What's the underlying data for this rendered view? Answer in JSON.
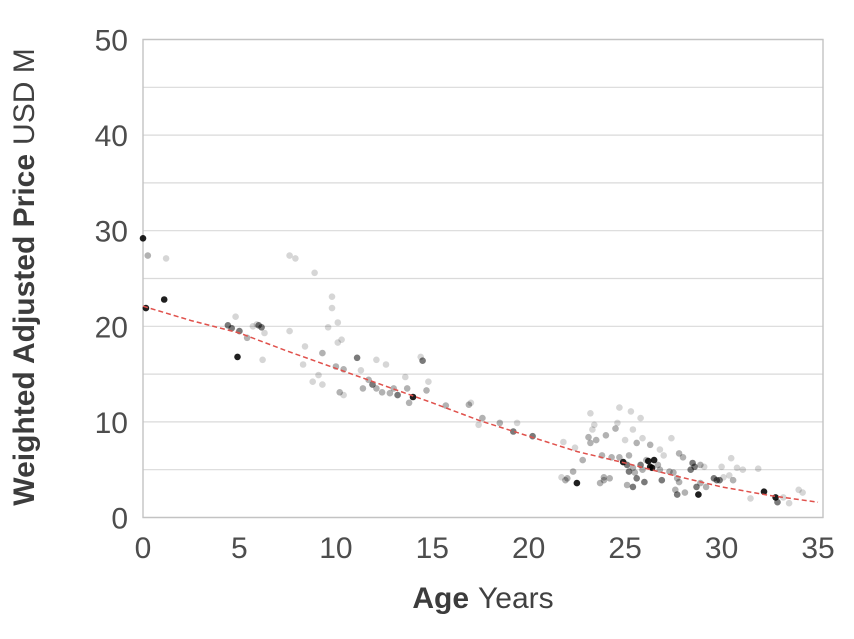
{
  "chart_data": {
    "type": "scatter",
    "title": "",
    "xlabel_bold": "Age",
    "xlabel_regular": "Years",
    "ylabel_bold": "Weighted Adjusted Price",
    "ylabel_regular": "USD M",
    "xlim": [
      0,
      35
    ],
    "ylim": [
      0,
      50
    ],
    "x_ticks": [
      0,
      5,
      10,
      15,
      20,
      25,
      30,
      35
    ],
    "y_ticks": [
      0,
      10,
      20,
      30,
      40,
      50
    ],
    "gridline_step_y": 5,
    "grid": "horizontal-only",
    "legend_position": "none",
    "colors": {
      "point": "#000000",
      "trend_line": "#e0514c",
      "grid": "#dadada",
      "border": "#c3c3c3",
      "tick_text": "#4d4d4d",
      "axis_title_text": "#414141",
      "background": "#ffffff"
    },
    "shade_opacity": {
      "l": 0.16,
      "m": 0.3,
      "d": 0.52,
      "k": 0.88
    },
    "point_radius": 3.3,
    "trend_style": "dashed",
    "trend_points": [
      [
        0,
        22.1
      ],
      [
        2.5,
        20.6
      ],
      [
        5,
        19.3
      ],
      [
        7.5,
        17.4
      ],
      [
        10,
        15.6
      ],
      [
        12.5,
        13.8
      ],
      [
        15,
        12.0
      ],
      [
        17.5,
        10.1
      ],
      [
        20,
        8.5
      ],
      [
        22.5,
        6.9
      ],
      [
        25,
        5.7
      ],
      [
        27.5,
        4.4
      ],
      [
        30,
        3.2
      ],
      [
        32.5,
        2.3
      ],
      [
        35,
        1.6
      ]
    ],
    "points": [
      [
        0.0,
        29.2,
        "k"
      ],
      [
        0.25,
        27.4,
        "m"
      ],
      [
        1.2,
        27.1,
        "l"
      ],
      [
        1.1,
        22.8,
        "k"
      ],
      [
        0.15,
        21.9,
        "k"
      ],
      [
        4.8,
        21.0,
        "l"
      ],
      [
        4.4,
        20.1,
        "d"
      ],
      [
        4.6,
        19.8,
        "d"
      ],
      [
        5.0,
        19.5,
        "d"
      ],
      [
        5.4,
        18.8,
        "m"
      ],
      [
        5.7,
        20.0,
        "l"
      ],
      [
        5.9,
        20.2,
        "l"
      ],
      [
        6.0,
        20.1,
        "d"
      ],
      [
        6.15,
        19.9,
        "d"
      ],
      [
        6.3,
        19.3,
        "l"
      ],
      [
        4.9,
        16.8,
        "k"
      ],
      [
        6.2,
        16.5,
        "l"
      ],
      [
        7.6,
        27.4,
        "l"
      ],
      [
        7.9,
        27.1,
        "l"
      ],
      [
        8.9,
        25.6,
        "l"
      ],
      [
        9.8,
        23.1,
        "l"
      ],
      [
        9.8,
        21.9,
        "l"
      ],
      [
        7.6,
        19.5,
        "l"
      ],
      [
        9.6,
        19.9,
        "l"
      ],
      [
        10.1,
        20.4,
        "l"
      ],
      [
        8.4,
        17.9,
        "l"
      ],
      [
        9.3,
        17.2,
        "m"
      ],
      [
        8.3,
        16.0,
        "l"
      ],
      [
        10.1,
        18.3,
        "l"
      ],
      [
        10.3,
        18.6,
        "l"
      ],
      [
        10.0,
        15.8,
        "m"
      ],
      [
        10.4,
        15.5,
        "m"
      ],
      [
        9.1,
        14.9,
        "l"
      ],
      [
        8.8,
        14.2,
        "l"
      ],
      [
        9.3,
        13.9,
        "l"
      ],
      [
        10.2,
        13.1,
        "m"
      ],
      [
        10.4,
        12.8,
        "l"
      ],
      [
        11.1,
        16.7,
        "d"
      ],
      [
        11.3,
        15.4,
        "l"
      ],
      [
        12.1,
        16.5,
        "l"
      ],
      [
        12.6,
        16.0,
        "l"
      ],
      [
        11.7,
        14.4,
        "m"
      ],
      [
        11.9,
        13.9,
        "d"
      ],
      [
        11.4,
        13.5,
        "m"
      ],
      [
        12.1,
        13.5,
        "m"
      ],
      [
        12.4,
        13.1,
        "m"
      ],
      [
        12.8,
        13.0,
        "m"
      ],
      [
        13.0,
        13.5,
        "m"
      ],
      [
        13.2,
        12.8,
        "d"
      ],
      [
        13.6,
        14.7,
        "l"
      ],
      [
        13.7,
        13.5,
        "m"
      ],
      [
        14.4,
        16.8,
        "l"
      ],
      [
        14.5,
        16.4,
        "d"
      ],
      [
        14.0,
        12.6,
        "k"
      ],
      [
        14.8,
        14.2,
        "l"
      ],
      [
        14.7,
        13.3,
        "m"
      ],
      [
        13.8,
        12.0,
        "m"
      ],
      [
        15.7,
        11.7,
        "m"
      ],
      [
        16.9,
        11.8,
        "m"
      ],
      [
        17.0,
        12.0,
        "l"
      ],
      [
        17.6,
        10.4,
        "m"
      ],
      [
        17.4,
        9.7,
        "l"
      ],
      [
        18.5,
        9.9,
        "m"
      ],
      [
        19.4,
        9.9,
        "l"
      ],
      [
        19.2,
        9.0,
        "d"
      ],
      [
        20.2,
        8.5,
        "d"
      ],
      [
        21.8,
        7.9,
        "l"
      ],
      [
        22.4,
        7.3,
        "l"
      ],
      [
        23.1,
        8.4,
        "m"
      ],
      [
        23.2,
        7.8,
        "m"
      ],
      [
        23.3,
        9.2,
        "l"
      ],
      [
        23.5,
        8.1,
        "m"
      ],
      [
        23.4,
        9.7,
        "l"
      ],
      [
        23.2,
        10.9,
        "l"
      ],
      [
        24.7,
        11.5,
        "l"
      ],
      [
        25.3,
        11.1,
        "l"
      ],
      [
        25.8,
        10.4,
        "l"
      ],
      [
        24.0,
        8.6,
        "m"
      ],
      [
        24.5,
        9.3,
        "m"
      ],
      [
        24.6,
        9.9,
        "l"
      ],
      [
        25.4,
        9.2,
        "l"
      ],
      [
        25.0,
        8.1,
        "l"
      ],
      [
        25.6,
        7.8,
        "m"
      ],
      [
        25.9,
        8.3,
        "l"
      ],
      [
        26.3,
        7.6,
        "m"
      ],
      [
        21.7,
        4.2,
        "l"
      ],
      [
        22.0,
        4.1,
        "m"
      ],
      [
        22.3,
        4.8,
        "m"
      ],
      [
        22.5,
        3.6,
        "k"
      ],
      [
        22.8,
        6.0,
        "m"
      ],
      [
        21.9,
        3.9,
        "m"
      ],
      [
        23.8,
        6.5,
        "m"
      ],
      [
        24.3,
        6.3,
        "m"
      ],
      [
        24.7,
        6.3,
        "m"
      ],
      [
        25.2,
        6.5,
        "m"
      ],
      [
        24.9,
        5.8,
        "k"
      ],
      [
        25.1,
        5.5,
        "d"
      ],
      [
        25.2,
        4.8,
        "d"
      ],
      [
        25.4,
        5.2,
        "m"
      ],
      [
        25.5,
        4.7,
        "m"
      ],
      [
        25.6,
        4.1,
        "d"
      ],
      [
        25.8,
        5.5,
        "d"
      ],
      [
        25.9,
        5.0,
        "m"
      ],
      [
        26.1,
        6.0,
        "m"
      ],
      [
        26.2,
        5.9,
        "k"
      ],
      [
        26.3,
        5.3,
        "k"
      ],
      [
        26.5,
        6.0,
        "k"
      ],
      [
        26.4,
        5.2,
        "k"
      ],
      [
        26.0,
        3.7,
        "d"
      ],
      [
        25.4,
        3.2,
        "d"
      ],
      [
        25.1,
        3.4,
        "m"
      ],
      [
        23.7,
        3.6,
        "m"
      ],
      [
        23.9,
        4.2,
        "m"
      ],
      [
        24.2,
        4.1,
        "m"
      ],
      [
        23.9,
        3.9,
        "m"
      ],
      [
        26.7,
        5.5,
        "m"
      ],
      [
        26.8,
        5.0,
        "m"
      ],
      [
        26.9,
        3.9,
        "d"
      ],
      [
        27.3,
        4.8,
        "m"
      ],
      [
        27.5,
        4.7,
        "m"
      ],
      [
        27.7,
        4.1,
        "m"
      ],
      [
        26.8,
        7.1,
        "l"
      ],
      [
        27.0,
        6.5,
        "l"
      ],
      [
        27.4,
        8.3,
        "l"
      ],
      [
        27.8,
        6.7,
        "m"
      ],
      [
        28.0,
        6.3,
        "m"
      ],
      [
        27.8,
        3.7,
        "m"
      ],
      [
        27.6,
        2.9,
        "m"
      ],
      [
        27.7,
        2.4,
        "d"
      ],
      [
        28.1,
        2.6,
        "m"
      ],
      [
        28.5,
        5.7,
        "d"
      ],
      [
        28.6,
        5.3,
        "d"
      ],
      [
        28.4,
        5.0,
        "d"
      ],
      [
        28.9,
        5.5,
        "m"
      ],
      [
        29.1,
        5.3,
        "l"
      ],
      [
        28.7,
        3.2,
        "d"
      ],
      [
        28.8,
        2.4,
        "k"
      ],
      [
        28.9,
        3.6,
        "m"
      ],
      [
        29.2,
        3.2,
        "m"
      ],
      [
        29.6,
        4.1,
        "d"
      ],
      [
        29.75,
        3.9,
        "d"
      ],
      [
        29.9,
        3.9,
        "d"
      ],
      [
        30.1,
        4.2,
        "l"
      ],
      [
        30.0,
        5.3,
        "l"
      ],
      [
        30.4,
        4.4,
        "l"
      ],
      [
        30.6,
        3.9,
        "m"
      ],
      [
        30.8,
        5.2,
        "l"
      ],
      [
        31.1,
        5.0,
        "l"
      ],
      [
        30.5,
        6.2,
        "l"
      ],
      [
        31.9,
        5.1,
        "l"
      ],
      [
        31.5,
        2.0,
        "l"
      ],
      [
        32.2,
        2.7,
        "k"
      ],
      [
        32.8,
        2.1,
        "k"
      ],
      [
        32.9,
        1.6,
        "d"
      ],
      [
        33.2,
        2.1,
        "l"
      ],
      [
        33.5,
        1.5,
        "l"
      ],
      [
        34.0,
        2.9,
        "l"
      ],
      [
        34.2,
        2.6,
        "l"
      ]
    ]
  }
}
